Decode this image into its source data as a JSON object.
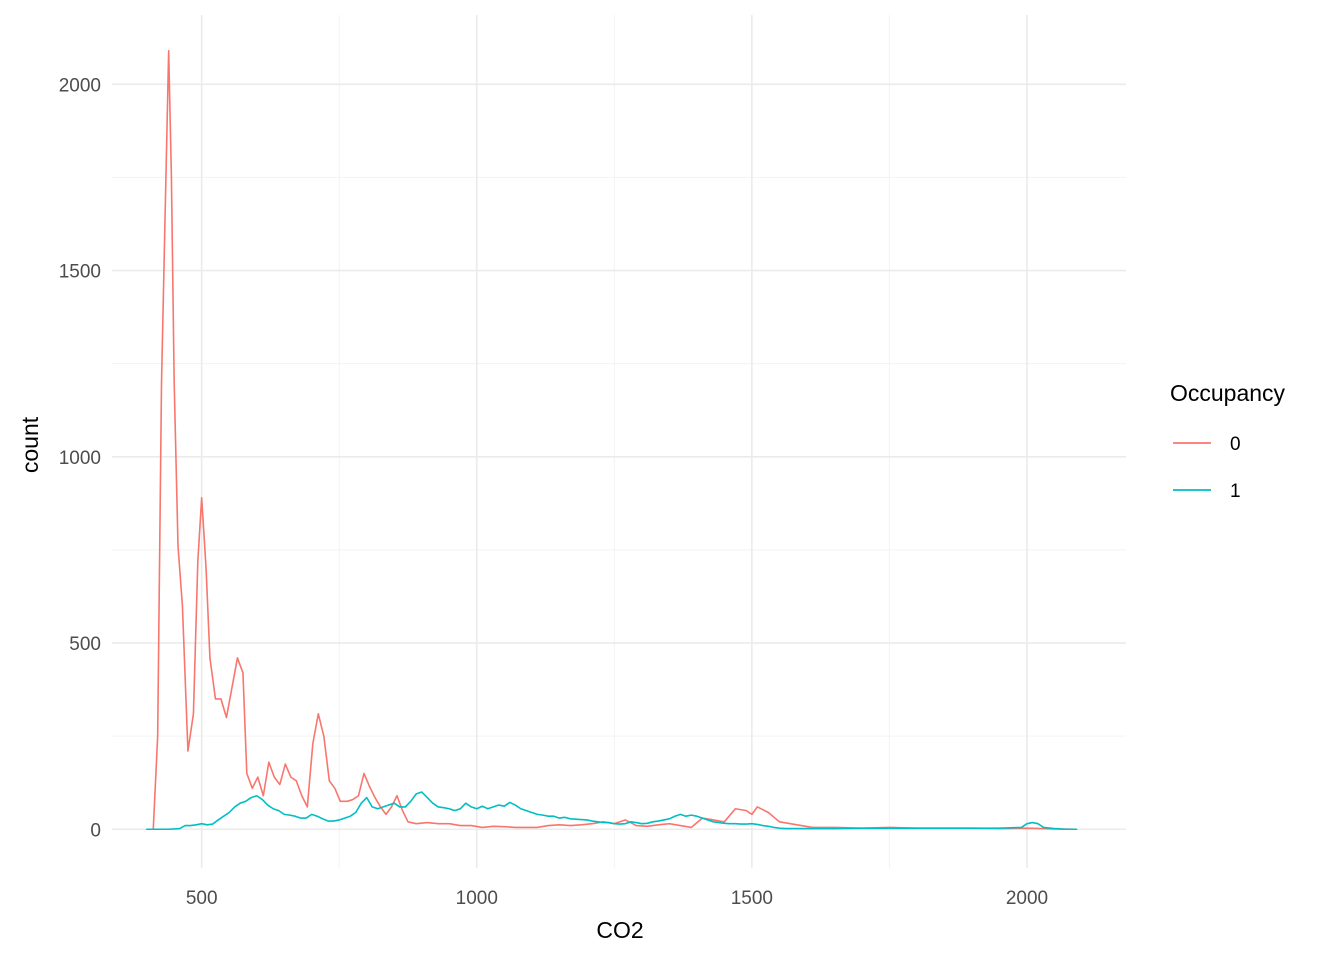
{
  "chart_data": {
    "type": "line",
    "title": "",
    "xlabel": "CO2",
    "ylabel": "count",
    "xlim": [
      337,
      2180
    ],
    "ylim": [
      -104,
      2186
    ],
    "x_ticks": [
      500,
      1000,
      1500,
      2000
    ],
    "y_ticks": [
      0,
      500,
      1000,
      1500,
      2000
    ],
    "x_ticks_minor": [
      750,
      1250,
      1750
    ],
    "y_ticks_minor": [
      250,
      750,
      1250,
      1750
    ],
    "grid": true,
    "legend": {
      "title": "Occupancy",
      "position": "right"
    },
    "series": [
      {
        "name": "0",
        "color": "#F8766D",
        "points": [
          [
            412,
            0
          ],
          [
            420,
            250
          ],
          [
            427,
            1200
          ],
          [
            435,
            1750
          ],
          [
            440,
            2090
          ],
          [
            445,
            1750
          ],
          [
            450,
            1200
          ],
          [
            457,
            760
          ],
          [
            465,
            600
          ],
          [
            475,
            210
          ],
          [
            485,
            310
          ],
          [
            493,
            720
          ],
          [
            500,
            890
          ],
          [
            508,
            700
          ],
          [
            515,
            460
          ],
          [
            525,
            350
          ],
          [
            535,
            350
          ],
          [
            545,
            300
          ],
          [
            555,
            380
          ],
          [
            565,
            460
          ],
          [
            575,
            420
          ],
          [
            582,
            150
          ],
          [
            592,
            110
          ],
          [
            602,
            140
          ],
          [
            612,
            90
          ],
          [
            622,
            180
          ],
          [
            632,
            140
          ],
          [
            642,
            120
          ],
          [
            652,
            175
          ],
          [
            662,
            140
          ],
          [
            672,
            130
          ],
          [
            682,
            90
          ],
          [
            692,
            60
          ],
          [
            702,
            230
          ],
          [
            712,
            310
          ],
          [
            722,
            250
          ],
          [
            732,
            130
          ],
          [
            742,
            110
          ],
          [
            752,
            75
          ],
          [
            765,
            75
          ],
          [
            775,
            80
          ],
          [
            785,
            90
          ],
          [
            795,
            150
          ],
          [
            805,
            115
          ],
          [
            815,
            85
          ],
          [
            825,
            60
          ],
          [
            835,
            40
          ],
          [
            845,
            60
          ],
          [
            855,
            90
          ],
          [
            865,
            50
          ],
          [
            875,
            20
          ],
          [
            890,
            15
          ],
          [
            910,
            18
          ],
          [
            930,
            15
          ],
          [
            950,
            15
          ],
          [
            970,
            10
          ],
          [
            990,
            10
          ],
          [
            1010,
            5
          ],
          [
            1030,
            8
          ],
          [
            1050,
            7
          ],
          [
            1070,
            5
          ],
          [
            1090,
            5
          ],
          [
            1110,
            5
          ],
          [
            1130,
            10
          ],
          [
            1150,
            12
          ],
          [
            1170,
            10
          ],
          [
            1190,
            12
          ],
          [
            1210,
            15
          ],
          [
            1230,
            20
          ],
          [
            1250,
            15
          ],
          [
            1270,
            25
          ],
          [
            1290,
            10
          ],
          [
            1310,
            8
          ],
          [
            1330,
            12
          ],
          [
            1350,
            15
          ],
          [
            1370,
            10
          ],
          [
            1390,
            5
          ],
          [
            1410,
            30
          ],
          [
            1430,
            25
          ],
          [
            1450,
            20
          ],
          [
            1470,
            55
          ],
          [
            1490,
            50
          ],
          [
            1500,
            40
          ],
          [
            1510,
            60
          ],
          [
            1530,
            45
          ],
          [
            1550,
            20
          ],
          [
            1570,
            15
          ],
          [
            1590,
            10
          ],
          [
            1610,
            5
          ],
          [
            1650,
            5
          ],
          [
            1700,
            3
          ],
          [
            1750,
            5
          ],
          [
            1800,
            3
          ],
          [
            1850,
            3
          ],
          [
            1900,
            3
          ],
          [
            1950,
            2
          ],
          [
            2000,
            3
          ],
          [
            2030,
            2
          ],
          [
            2050,
            1
          ],
          [
            2090,
            0
          ]
        ]
      },
      {
        "name": "1",
        "color": "#00BFC4",
        "points": [
          [
            400,
            0
          ],
          [
            420,
            0
          ],
          [
            440,
            0
          ],
          [
            460,
            2
          ],
          [
            470,
            10
          ],
          [
            480,
            10
          ],
          [
            490,
            12
          ],
          [
            500,
            15
          ],
          [
            510,
            12
          ],
          [
            520,
            14
          ],
          [
            530,
            25
          ],
          [
            540,
            35
          ],
          [
            550,
            45
          ],
          [
            560,
            60
          ],
          [
            570,
            70
          ],
          [
            580,
            75
          ],
          [
            590,
            85
          ],
          [
            600,
            90
          ],
          [
            610,
            80
          ],
          [
            620,
            65
          ],
          [
            630,
            55
          ],
          [
            640,
            50
          ],
          [
            650,
            40
          ],
          [
            660,
            38
          ],
          [
            670,
            35
          ],
          [
            680,
            30
          ],
          [
            690,
            30
          ],
          [
            700,
            40
          ],
          [
            710,
            35
          ],
          [
            720,
            28
          ],
          [
            730,
            22
          ],
          [
            740,
            22
          ],
          [
            750,
            25
          ],
          [
            760,
            30
          ],
          [
            770,
            35
          ],
          [
            780,
            45
          ],
          [
            790,
            70
          ],
          [
            800,
            85
          ],
          [
            810,
            60
          ],
          [
            820,
            55
          ],
          [
            830,
            60
          ],
          [
            840,
            65
          ],
          [
            850,
            70
          ],
          [
            860,
            60
          ],
          [
            870,
            60
          ],
          [
            880,
            75
          ],
          [
            890,
            95
          ],
          [
            900,
            100
          ],
          [
            910,
            85
          ],
          [
            920,
            70
          ],
          [
            930,
            60
          ],
          [
            940,
            58
          ],
          [
            950,
            55
          ],
          [
            960,
            50
          ],
          [
            970,
            55
          ],
          [
            980,
            70
          ],
          [
            990,
            60
          ],
          [
            1000,
            55
          ],
          [
            1010,
            62
          ],
          [
            1020,
            55
          ],
          [
            1030,
            60
          ],
          [
            1040,
            65
          ],
          [
            1050,
            62
          ],
          [
            1060,
            72
          ],
          [
            1070,
            65
          ],
          [
            1080,
            55
          ],
          [
            1090,
            50
          ],
          [
            1100,
            45
          ],
          [
            1110,
            40
          ],
          [
            1120,
            38
          ],
          [
            1130,
            35
          ],
          [
            1140,
            35
          ],
          [
            1150,
            30
          ],
          [
            1160,
            32
          ],
          [
            1170,
            28
          ],
          [
            1180,
            27
          ],
          [
            1190,
            26
          ],
          [
            1200,
            25
          ],
          [
            1210,
            22
          ],
          [
            1220,
            20
          ],
          [
            1230,
            18
          ],
          [
            1240,
            18
          ],
          [
            1250,
            15
          ],
          [
            1260,
            14
          ],
          [
            1270,
            15
          ],
          [
            1280,
            20
          ],
          [
            1290,
            18
          ],
          [
            1300,
            15
          ],
          [
            1310,
            16
          ],
          [
            1320,
            20
          ],
          [
            1330,
            22
          ],
          [
            1340,
            25
          ],
          [
            1350,
            28
          ],
          [
            1360,
            35
          ],
          [
            1370,
            40
          ],
          [
            1380,
            35
          ],
          [
            1390,
            38
          ],
          [
            1400,
            35
          ],
          [
            1410,
            30
          ],
          [
            1420,
            25
          ],
          [
            1430,
            20
          ],
          [
            1440,
            18
          ],
          [
            1450,
            16
          ],
          [
            1460,
            15
          ],
          [
            1470,
            15
          ],
          [
            1480,
            14
          ],
          [
            1490,
            14
          ],
          [
            1500,
            15
          ],
          [
            1510,
            13
          ],
          [
            1520,
            10
          ],
          [
            1530,
            8
          ],
          [
            1540,
            5
          ],
          [
            1550,
            3
          ],
          [
            1560,
            2
          ],
          [
            1600,
            2
          ],
          [
            1650,
            2
          ],
          [
            1700,
            3
          ],
          [
            1750,
            3
          ],
          [
            1800,
            3
          ],
          [
            1850,
            3
          ],
          [
            1900,
            3
          ],
          [
            1950,
            3
          ],
          [
            1990,
            5
          ],
          [
            2000,
            15
          ],
          [
            2010,
            18
          ],
          [
            2020,
            15
          ],
          [
            2030,
            5
          ],
          [
            2050,
            2
          ],
          [
            2070,
            0
          ],
          [
            2090,
            0
          ]
        ]
      }
    ]
  }
}
